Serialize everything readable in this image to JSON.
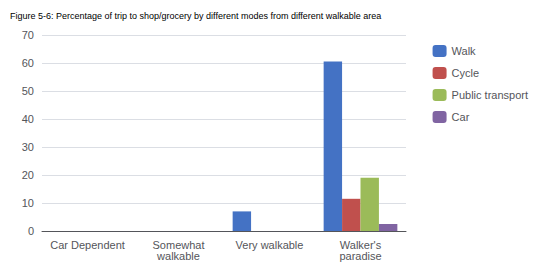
{
  "chart_data": {
    "type": "bar",
    "title": "Figure 5-6: Percentage of trip to shop/grocery by different modes from different walkable area",
    "categories": [
      "Car Dependent",
      "Somewhat\nwalkable",
      "Very walkable",
      "Walker's\nparadise"
    ],
    "series": [
      {
        "name": "Walk",
        "color": "#4472C4",
        "values": [
          0,
          0,
          7,
          60.5
        ]
      },
      {
        "name": "Cycle",
        "color": "#C0504D",
        "values": [
          0,
          0,
          0,
          11.5
        ]
      },
      {
        "name": "Public transport",
        "color": "#9BBB59",
        "values": [
          0,
          0,
          0,
          19
        ]
      },
      {
        "name": "Car",
        "color": "#8064A2",
        "values": [
          0,
          0,
          0,
          2.5
        ]
      }
    ],
    "ylim": [
      0,
      70
    ],
    "yticks": [
      0,
      10,
      20,
      30,
      40,
      50,
      60,
      70
    ],
    "grid": true,
    "legend": "right"
  }
}
